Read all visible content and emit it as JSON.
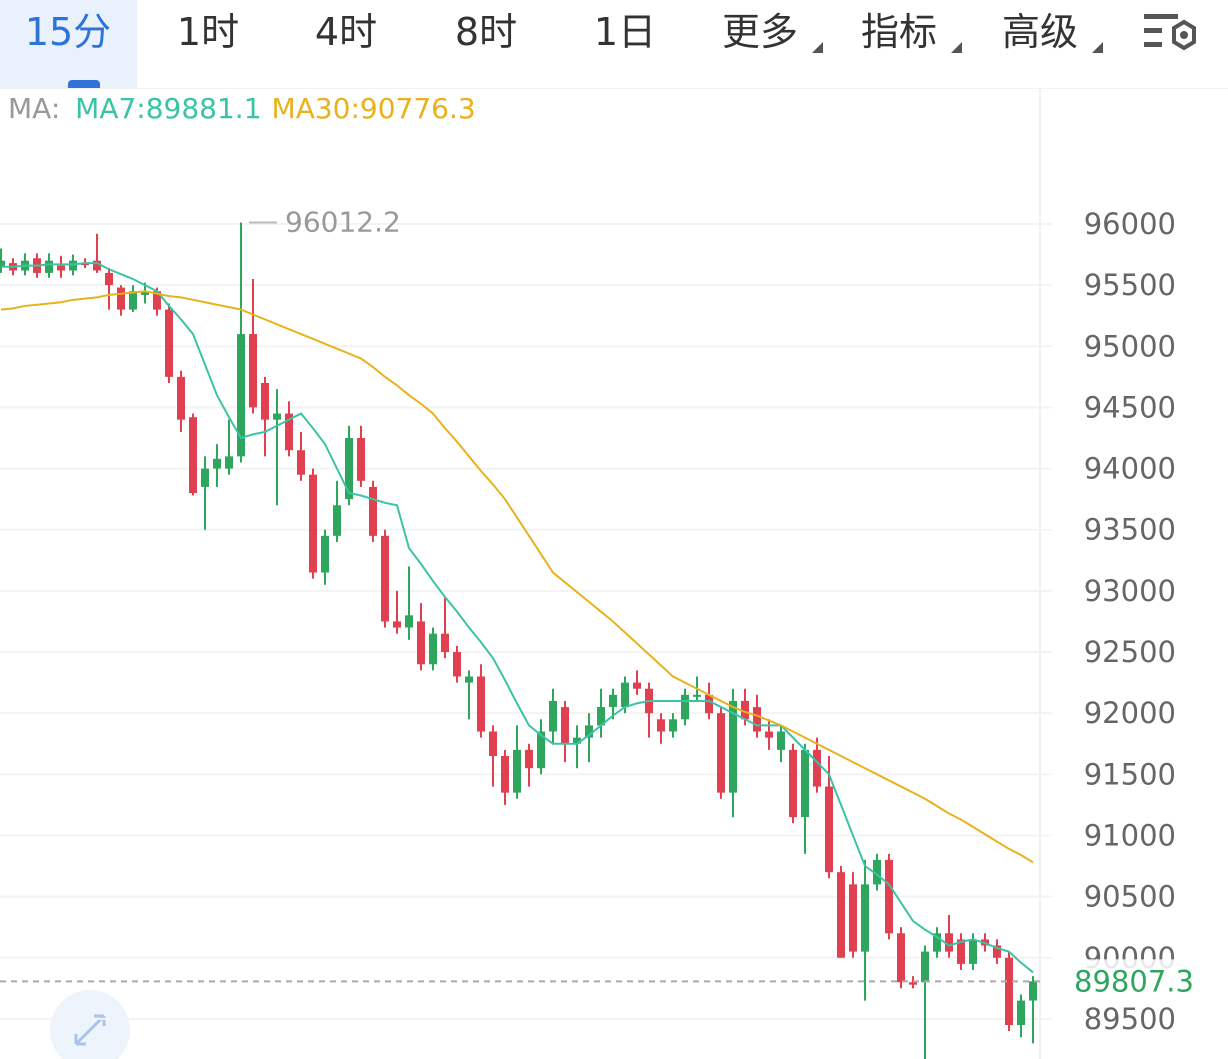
{
  "tabs": [
    "15分",
    "1时",
    "4时",
    "8时",
    "1日",
    "更多",
    "指标",
    "高级"
  ],
  "chart_data": {
    "type": "candlestick",
    "ma_prefix": "MA:",
    "up_color": "#2ea65e",
    "down_color": "#e0404f",
    "open": [
      95650,
      95680,
      95620,
      95720,
      95600,
      95660,
      95620,
      95680,
      95700,
      95600,
      95480,
      95300,
      95420,
      95450,
      95300,
      94750,
      94420,
      93850,
      94000,
      94000,
      94100,
      95100,
      94700,
      94400,
      94450,
      94150,
      93950,
      93150,
      93450,
      93750,
      94250,
      93850,
      93450,
      92750,
      92700,
      92750,
      92400,
      92650,
      92500,
      92250,
      92300,
      91850,
      91650,
      91350,
      91700,
      91550,
      91850,
      92050,
      91750,
      91800,
      91900,
      92050,
      92050,
      92250,
      92200,
      91950,
      91850,
      91950,
      92150,
      92150,
      92000,
      91350,
      92100,
      92050,
      91850,
      91700,
      91700,
      91150,
      91700,
      91400,
      90700,
      90600,
      90050,
      90600,
      90800,
      90200,
      89800,
      89800,
      90050,
      90200,
      90150,
      89950,
      90150,
      90100,
      90000,
      89450,
      89650
    ],
    "close": [
      95700,
      95620,
      95700,
      95600,
      95700,
      95620,
      95700,
      95680,
      95620,
      95500,
      95300,
      95450,
      95450,
      95300,
      94750,
      94400,
      93800,
      94000,
      94080,
      94100,
      95100,
      94500,
      94400,
      94450,
      94150,
      93950,
      93150,
      93450,
      93700,
      94250,
      93900,
      93450,
      92750,
      92700,
      92800,
      92400,
      92650,
      92500,
      92300,
      92300,
      91850,
      91650,
      91350,
      91700,
      91550,
      91850,
      92100,
      91750,
      91800,
      91900,
      92050,
      92150,
      92250,
      92200,
      92000,
      91850,
      91950,
      92150,
      92150,
      92000,
      91350,
      92100,
      91950,
      91850,
      91800,
      91850,
      91150,
      91700,
      91400,
      90700,
      90000,
      90050,
      90600,
      90800,
      90200,
      89800,
      89780,
      90050,
      90200,
      90050,
      89950,
      90150,
      90100,
      90000,
      89450,
      89650,
      89807.3
    ],
    "high": [
      95800,
      95720,
      95760,
      95760,
      95760,
      95740,
      95750,
      95720,
      95920,
      95640,
      95500,
      95500,
      95520,
      95480,
      95350,
      94800,
      94450,
      94100,
      94200,
      94400,
      96012.2,
      95550,
      94750,
      94650,
      94550,
      94300,
      94000,
      93500,
      93900,
      94350,
      94350,
      93900,
      93500,
      93000,
      93200,
      92900,
      92700,
      92950,
      92550,
      92350,
      92400,
      91900,
      91700,
      91900,
      91750,
      91950,
      92200,
      92100,
      91900,
      92000,
      92200,
      92200,
      92300,
      92350,
      92250,
      92000,
      92000,
      92200,
      92300,
      92250,
      92050,
      92200,
      92200,
      92150,
      91950,
      91900,
      91750,
      91750,
      91800,
      91650,
      90750,
      90700,
      90800,
      90850,
      90850,
      90250,
      89850,
      90100,
      90250,
      90350,
      90200,
      90200,
      90200,
      90150,
      90050,
      89700,
      89850
    ],
    "low": [
      95600,
      95580,
      95580,
      95560,
      95560,
      95560,
      95580,
      95640,
      95600,
      95300,
      95250,
      95280,
      95350,
      95250,
      94700,
      94300,
      93780,
      93500,
      93850,
      93950,
      94050,
      94450,
      94100,
      93700,
      94100,
      93900,
      93100,
      93050,
      93400,
      93700,
      93850,
      93400,
      92700,
      92650,
      92600,
      92350,
      92350,
      92450,
      92250,
      91950,
      91800,
      91400,
      91250,
      91300,
      91400,
      91500,
      91750,
      91600,
      91550,
      91600,
      91800,
      91950,
      92000,
      92150,
      91800,
      91750,
      91800,
      91900,
      92100,
      91950,
      91300,
      91150,
      91900,
      91800,
      91700,
      91600,
      91100,
      90850,
      91350,
      90650,
      90000,
      90000,
      89650,
      90550,
      90150,
      89750,
      89750,
      89050,
      90000,
      90000,
      89900,
      89900,
      90050,
      89950,
      89400,
      89350,
      89300
    ],
    "series": [
      {
        "name": "MA7:89881.1",
        "color": "#3cc3a6",
        "values": [
          95650,
          95650,
          95660,
          95660,
          95670,
          95670,
          95670,
          95680,
          95680,
          95630,
          95590,
          95550,
          95500,
          95450,
          95330,
          95220,
          95100,
          94850,
          94600,
          94420,
          94250,
          94280,
          94300,
          94350,
          94400,
          94450,
          94330,
          94200,
          94000,
          93800,
          93780,
          93750,
          93720,
          93700,
          93350,
          93220,
          93080,
          92950,
          92830,
          92700,
          92580,
          92450,
          92270,
          92080,
          91900,
          91820,
          91750,
          91750,
          91750,
          91820,
          91900,
          91980,
          92050,
          92080,
          92100,
          92100,
          92100,
          92100,
          92100,
          92100,
          92050,
          92000,
          91950,
          91900,
          91900,
          91900,
          91800,
          91700,
          91600,
          91500,
          91250,
          91000,
          90750,
          90680,
          90600,
          90450,
          90300,
          90230,
          90170,
          90100,
          90130,
          90150,
          90120,
          90080,
          90050,
          89960,
          89880
        ]
      },
      {
        "name": "MA30:90776.3",
        "color": "#e9b21c",
        "values": [
          95300,
          95310,
          95330,
          95340,
          95350,
          95360,
          95380,
          95390,
          95400,
          95420,
          95430,
          95440,
          95450,
          95430,
          95410,
          95400,
          95380,
          95360,
          95340,
          95320,
          95300,
          95260,
          95220,
          95180,
          95140,
          95100,
          95060,
          95020,
          94980,
          94940,
          94900,
          94830,
          94750,
          94680,
          94600,
          94530,
          94450,
          94330,
          94220,
          94100,
          93980,
          93870,
          93750,
          93600,
          93450,
          93300,
          93150,
          93070,
          92990,
          92910,
          92830,
          92750,
          92660,
          92570,
          92480,
          92390,
          92300,
          92250,
          92200,
          92150,
          92100,
          92050,
          92010,
          91980,
          91940,
          91900,
          91850,
          91800,
          91750,
          91700,
          91650,
          91600,
          91550,
          91500,
          91450,
          91400,
          91350,
          91300,
          91240,
          91180,
          91130,
          91070,
          91010,
          90950,
          90890,
          90840,
          90780
        ]
      }
    ],
    "last_price": 89807.3,
    "ylim": [
      89172.2,
      96768.6
    ],
    "yticks": [
      89500,
      90000,
      90500,
      91000,
      91500,
      92000,
      92500,
      93000,
      93500,
      94000,
      94500,
      95000,
      95500,
      96000
    ],
    "grid": true
  }
}
